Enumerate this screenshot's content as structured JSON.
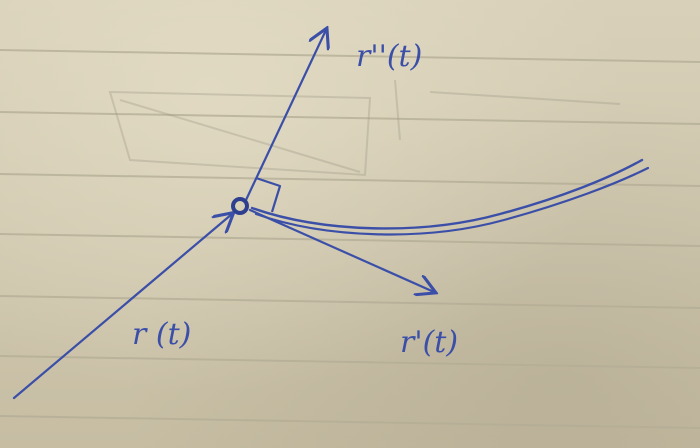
{
  "diagram": {
    "labels": {
      "position_vector": "r (t)",
      "velocity_vector": "r'(t)",
      "acceleration_vector": "r''(t)"
    },
    "ink_color": "#3b4fa8",
    "paper_color": "#d3cbb2",
    "rule_line_color": "#b9b29a"
  }
}
